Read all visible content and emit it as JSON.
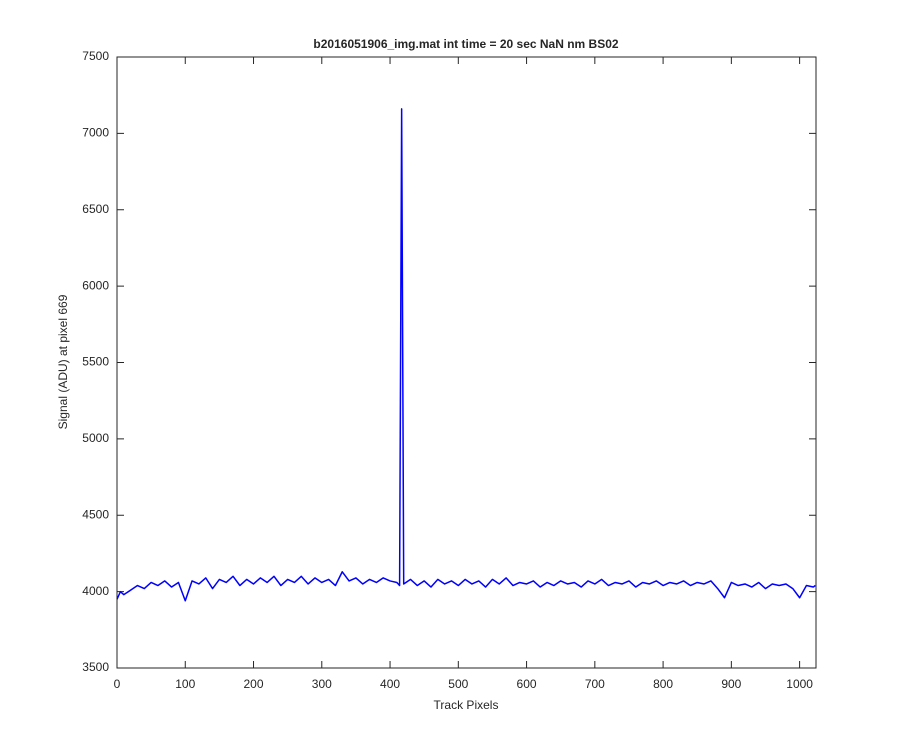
{
  "chart_data": {
    "type": "line",
    "title": "b2016051906_img.mat int time = 20 sec  NaN nm BS02",
    "x_label": "Track Pixels",
    "y_label": "Signal (ADU) at pixel 669",
    "x": [
      0,
      5,
      10,
      20,
      30,
      40,
      50,
      60,
      70,
      80,
      90,
      100,
      110,
      120,
      130,
      140,
      150,
      160,
      170,
      180,
      190,
      200,
      210,
      220,
      230,
      240,
      250,
      260,
      270,
      280,
      290,
      300,
      310,
      320,
      330,
      340,
      350,
      360,
      370,
      380,
      390,
      400,
      410,
      414,
      417,
      420,
      430,
      440,
      450,
      460,
      470,
      480,
      490,
      500,
      510,
      520,
      530,
      540,
      550,
      560,
      570,
      580,
      590,
      600,
      610,
      620,
      630,
      640,
      650,
      660,
      670,
      680,
      690,
      700,
      710,
      720,
      730,
      740,
      750,
      760,
      770,
      780,
      790,
      800,
      810,
      820,
      830,
      840,
      850,
      860,
      870,
      880,
      890,
      900,
      910,
      920,
      930,
      940,
      950,
      960,
      970,
      980,
      990,
      1000,
      1010,
      1020,
      1023
    ],
    "series": [
      {
        "color": "#0000ff",
        "values": [
          3950,
          4000,
          3980,
          4010,
          4040,
          4020,
          4060,
          4040,
          4070,
          4030,
          4060,
          3940,
          4070,
          4050,
          4090,
          4020,
          4080,
          4060,
          4100,
          4040,
          4080,
          4050,
          4090,
          4060,
          4100,
          4040,
          4080,
          4060,
          4100,
          4050,
          4090,
          4060,
          4080,
          4040,
          4130,
          4070,
          4090,
          4050,
          4080,
          4060,
          4090,
          4070,
          4060,
          4040,
          7160,
          4050,
          4080,
          4040,
          4070,
          4030,
          4080,
          4050,
          4070,
          4040,
          4080,
          4050,
          4070,
          4030,
          4080,
          4050,
          4090,
          4040,
          4060,
          4050,
          4070,
          4030,
          4060,
          4040,
          4070,
          4050,
          4060,
          4030,
          4070,
          4050,
          4080,
          4040,
          4060,
          4050,
          4070,
          4030,
          4060,
          4050,
          4070,
          4040,
          4060,
          4050,
          4070,
          4040,
          4060,
          4050,
          4070,
          4020,
          3960,
          4060,
          4040,
          4050,
          4030,
          4060,
          4020,
          4050,
          4040,
          4050,
          4020,
          3960,
          4040,
          4030,
          4040
        ]
      }
    ],
    "xlim": [
      0,
      1024
    ],
    "ylim": [
      3500,
      7500
    ],
    "xticks": [
      0,
      100,
      200,
      300,
      400,
      500,
      600,
      700,
      800,
      900,
      1000
    ],
    "yticks": [
      3500,
      4000,
      4500,
      5000,
      5500,
      6000,
      6500,
      7000,
      7500
    ],
    "grid": false
  }
}
